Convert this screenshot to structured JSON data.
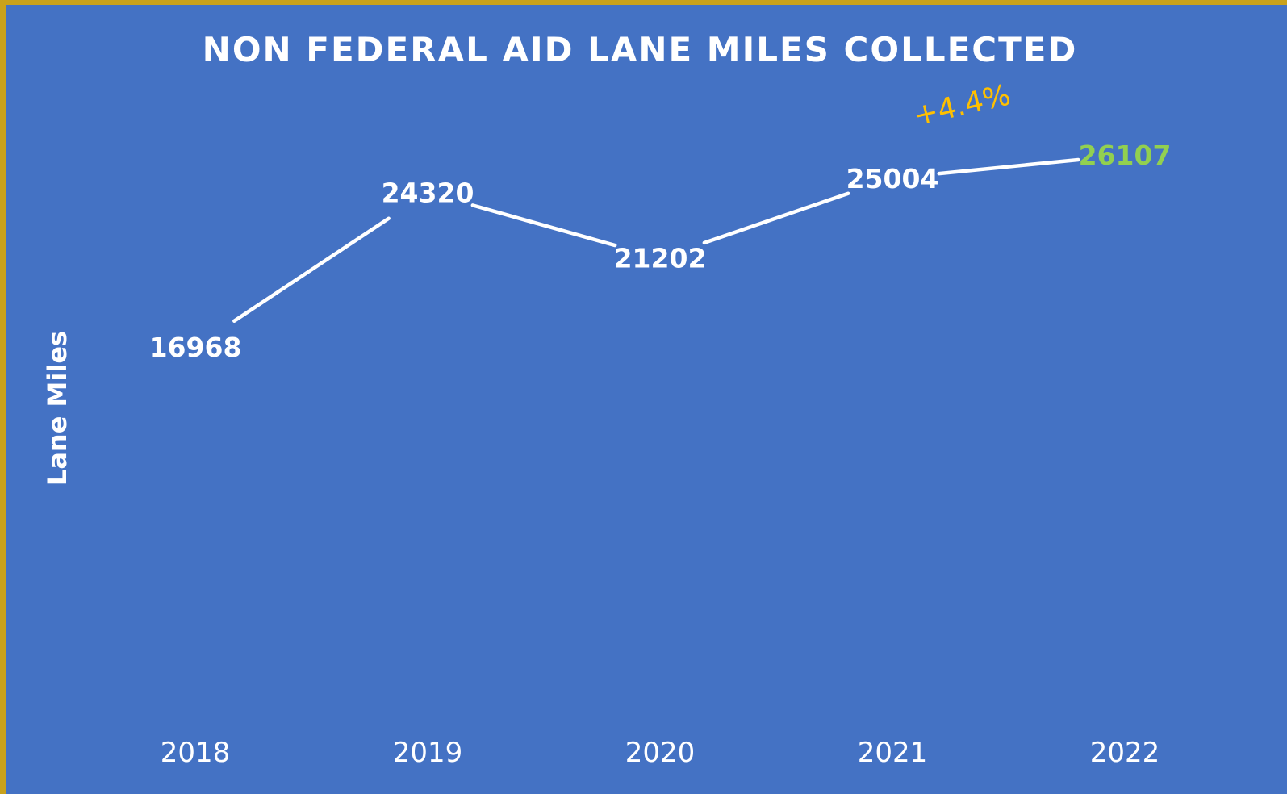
{
  "colors": {
    "background": "#4472c4",
    "border": "#c9a21c",
    "line": "#ffffff",
    "highlight_label": "#92d050",
    "annotation": "#ffc000"
  },
  "chart_data": {
    "type": "line",
    "title": "NON FEDERAL AID LANE MILES COLLECTED",
    "xlabel": "",
    "ylabel": "Lane Miles",
    "categories": [
      "2018",
      "2019",
      "2020",
      "2021",
      "2022"
    ],
    "values": [
      16968,
      24320,
      21202,
      25004,
      26107
    ],
    "data_labels": [
      "16968",
      "24320",
      "21202",
      "25004",
      "26107"
    ],
    "highlight_index": 4,
    "annotation": "+4.4%",
    "drop_lines": true,
    "grid": false,
    "legend": "none"
  }
}
